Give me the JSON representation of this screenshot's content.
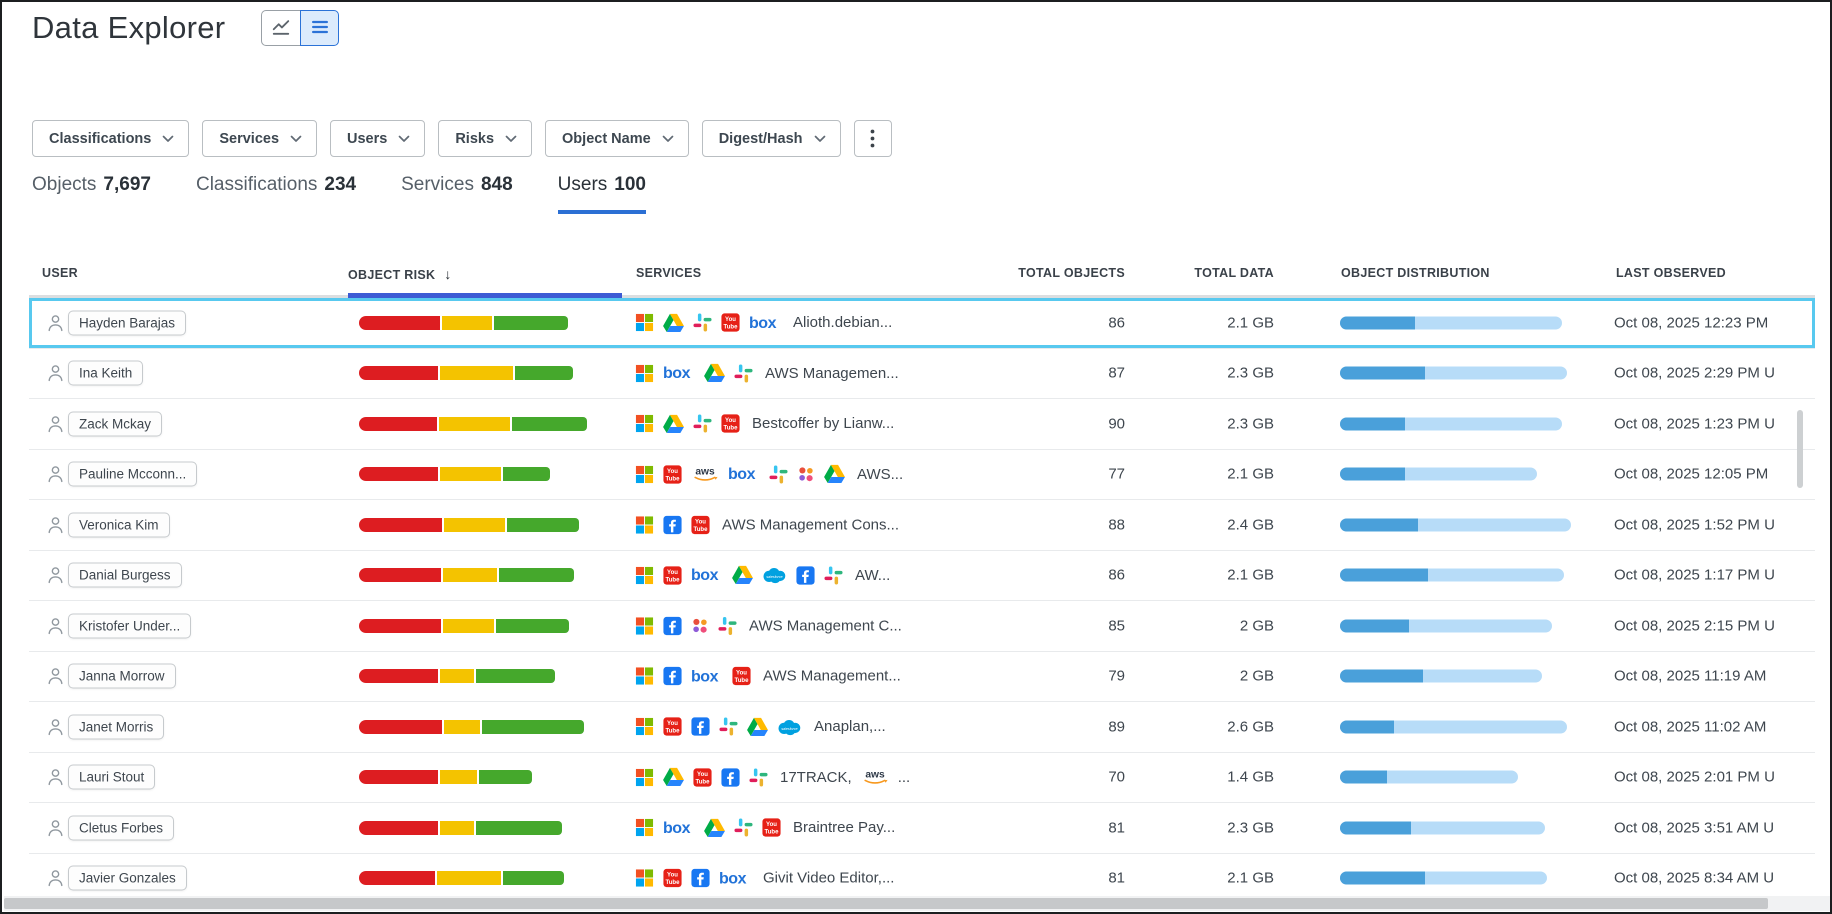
{
  "page": {
    "title": "Data Explorer"
  },
  "view_toggle": {
    "options": [
      {
        "name": "chart-view",
        "icon": "chart-line",
        "active": false
      },
      {
        "name": "list-view",
        "icon": "list",
        "active": true
      }
    ]
  },
  "filters": {
    "buttons": [
      "Classifications",
      "Services",
      "Users",
      "Risks",
      "Object Name",
      "Digest/Hash"
    ],
    "more_button": "kebab-menu"
  },
  "tabs": [
    {
      "label": "Objects",
      "count": "7,697",
      "active": false
    },
    {
      "label": "Classifications",
      "count": "234",
      "active": false
    },
    {
      "label": "Services",
      "count": "848",
      "active": false
    },
    {
      "label": "Users",
      "count": "100",
      "active": true
    }
  ],
  "colors": {
    "accent_blue": "#2b6fd4",
    "sort_underline": "#3d5bd4",
    "row_highlight": "#58c9ef",
    "risk_red": "#dd1d21",
    "risk_yellow": "#f4c300",
    "risk_green": "#45a82c",
    "dist_dark": "#4aa0da",
    "dist_light": "#b7dcf8"
  },
  "table": {
    "columns": [
      {
        "label": "USER"
      },
      {
        "label": "OBJECT RISK",
        "sort": "desc"
      },
      {
        "label": "SERVICES"
      },
      {
        "label": "TOTAL OBJECTS",
        "align": "right"
      },
      {
        "label": "TOTAL DATA",
        "align": "right"
      },
      {
        "label": "OBJECT DISTRIBUTION"
      },
      {
        "label": "LAST OBSERVED"
      }
    ],
    "rows": [
      {
        "user": "Hayden Barajas",
        "highlighted": true,
        "risk": {
          "red": 81,
          "yellow": 50,
          "green": 74
        },
        "services": {
          "icons": [
            "microsoft",
            "google-drive",
            "slack",
            "youtube",
            "box"
          ],
          "label": "Alioth.debian..."
        },
        "total_objects": "86",
        "total_data": "2.1 GB",
        "distribution": {
          "filled": 75,
          "total": 222
        },
        "last_observed": "Oct 08, 2025 12:23 PM"
      },
      {
        "user": "Ina Keith",
        "highlighted": false,
        "risk": {
          "red": 79,
          "yellow": 73,
          "green": 58
        },
        "services": {
          "icons": [
            "microsoft",
            "box",
            "google-drive",
            "slack"
          ],
          "label": "AWS Managemen..."
        },
        "total_objects": "87",
        "total_data": "2.3 GB",
        "distribution": {
          "filled": 85,
          "total": 227
        },
        "last_observed": "Oct 08, 2025 2:29 PM U"
      },
      {
        "user": "Zack Mckay",
        "highlighted": false,
        "risk": {
          "red": 78,
          "yellow": 71,
          "green": 75
        },
        "services": {
          "icons": [
            "microsoft",
            "google-drive",
            "slack",
            "youtube"
          ],
          "label": "Bestcoffer by Lianw..."
        },
        "total_objects": "90",
        "total_data": "2.3 GB",
        "distribution": {
          "filled": 65,
          "total": 222
        },
        "last_observed": "Oct 08, 2025 1:23 PM U"
      },
      {
        "user": "Pauline Mcconn...",
        "highlighted": false,
        "risk": {
          "red": 79,
          "yellow": 61,
          "green": 47
        },
        "services": {
          "icons": [
            "microsoft",
            "youtube",
            "aws",
            "box",
            "slack",
            "app-dots",
            "google-drive"
          ],
          "label": "AWS..."
        },
        "total_objects": "77",
        "total_data": "2.1 GB",
        "distribution": {
          "filled": 65,
          "total": 197
        },
        "last_observed": "Oct 08, 2025 12:05 PM"
      },
      {
        "user": "Veronica Kim",
        "highlighted": false,
        "risk": {
          "red": 83,
          "yellow": 61,
          "green": 72
        },
        "services": {
          "icons": [
            "microsoft",
            "facebook",
            "youtube"
          ],
          "label": "AWS Management Cons..."
        },
        "total_objects": "88",
        "total_data": "2.4 GB",
        "distribution": {
          "filled": 78,
          "total": 231
        },
        "last_observed": "Oct 08, 2025 1:52 PM U"
      },
      {
        "user": "Danial Burgess",
        "highlighted": false,
        "risk": {
          "red": 82,
          "yellow": 54,
          "green": 75
        },
        "services": {
          "icons": [
            "microsoft",
            "youtube",
            "box",
            "google-drive",
            "salesforce",
            "facebook",
            "slack"
          ],
          "label": "AW..."
        },
        "total_objects": "86",
        "total_data": "2.1 GB",
        "distribution": {
          "filled": 88,
          "total": 224
        },
        "last_observed": "Oct 08, 2025 1:17 PM U"
      },
      {
        "user": "Kristofer Under...",
        "highlighted": false,
        "risk": {
          "red": 82,
          "yellow": 51,
          "green": 73
        },
        "services": {
          "icons": [
            "microsoft",
            "facebook",
            "app-dots",
            "slack"
          ],
          "label": "AWS Management C..."
        },
        "total_objects": "85",
        "total_data": "2 GB",
        "distribution": {
          "filled": 69,
          "total": 212
        },
        "last_observed": "Oct 08, 2025 2:15 PM U"
      },
      {
        "user": "Janna Morrow",
        "highlighted": false,
        "risk": {
          "red": 79,
          "yellow": 34,
          "green": 79
        },
        "services": {
          "icons": [
            "microsoft",
            "facebook",
            "box",
            "youtube"
          ],
          "label": "AWS Management..."
        },
        "total_objects": "79",
        "total_data": "2 GB",
        "distribution": {
          "filled": 83,
          "total": 202
        },
        "last_observed": "Oct 08, 2025 11:19 AM"
      },
      {
        "user": "Janet Morris",
        "highlighted": false,
        "risk": {
          "red": 83,
          "yellow": 36,
          "green": 102
        },
        "services": {
          "icons": [
            "microsoft",
            "youtube",
            "facebook",
            "slack",
            "google-drive",
            "salesforce"
          ],
          "label": "Anaplan,..."
        },
        "total_objects": "89",
        "total_data": "2.6 GB",
        "distribution": {
          "filled": 54,
          "total": 227
        },
        "last_observed": "Oct 08, 2025 11:02 AM"
      },
      {
        "user": "Lauri Stout",
        "highlighted": false,
        "risk": {
          "red": 79,
          "yellow": 37,
          "green": 53
        },
        "services": {
          "icons": [
            "microsoft",
            "google-drive",
            "youtube",
            "facebook",
            "slack"
          ],
          "label": "17TRACK,",
          "suffix_icon": "aws",
          "suffix_label": "..."
        },
        "total_objects": "70",
        "total_data": "1.4 GB",
        "distribution": {
          "filled": 47,
          "total": 178
        },
        "last_observed": "Oct 08, 2025 2:01 PM U"
      },
      {
        "user": "Cletus Forbes",
        "highlighted": false,
        "risk": {
          "red": 79,
          "yellow": 34,
          "green": 86
        },
        "services": {
          "icons": [
            "microsoft",
            "box",
            "google-drive",
            "slack",
            "youtube"
          ],
          "label": "Braintree Pay..."
        },
        "total_objects": "81",
        "total_data": "2.3 GB",
        "distribution": {
          "filled": 71,
          "total": 205
        },
        "last_observed": "Oct 08, 2025 3:51 AM U"
      },
      {
        "user": "Javier Gonzales",
        "highlighted": false,
        "risk": {
          "red": 76,
          "yellow": 64,
          "green": 61
        },
        "services": {
          "icons": [
            "microsoft",
            "youtube",
            "facebook",
            "box"
          ],
          "label": "Givit Video Editor,..."
        },
        "total_objects": "81",
        "total_data": "2.1 GB",
        "distribution": {
          "filled": 85,
          "total": 207
        },
        "last_observed": "Oct 08, 2025 8:34 AM U"
      }
    ]
  }
}
